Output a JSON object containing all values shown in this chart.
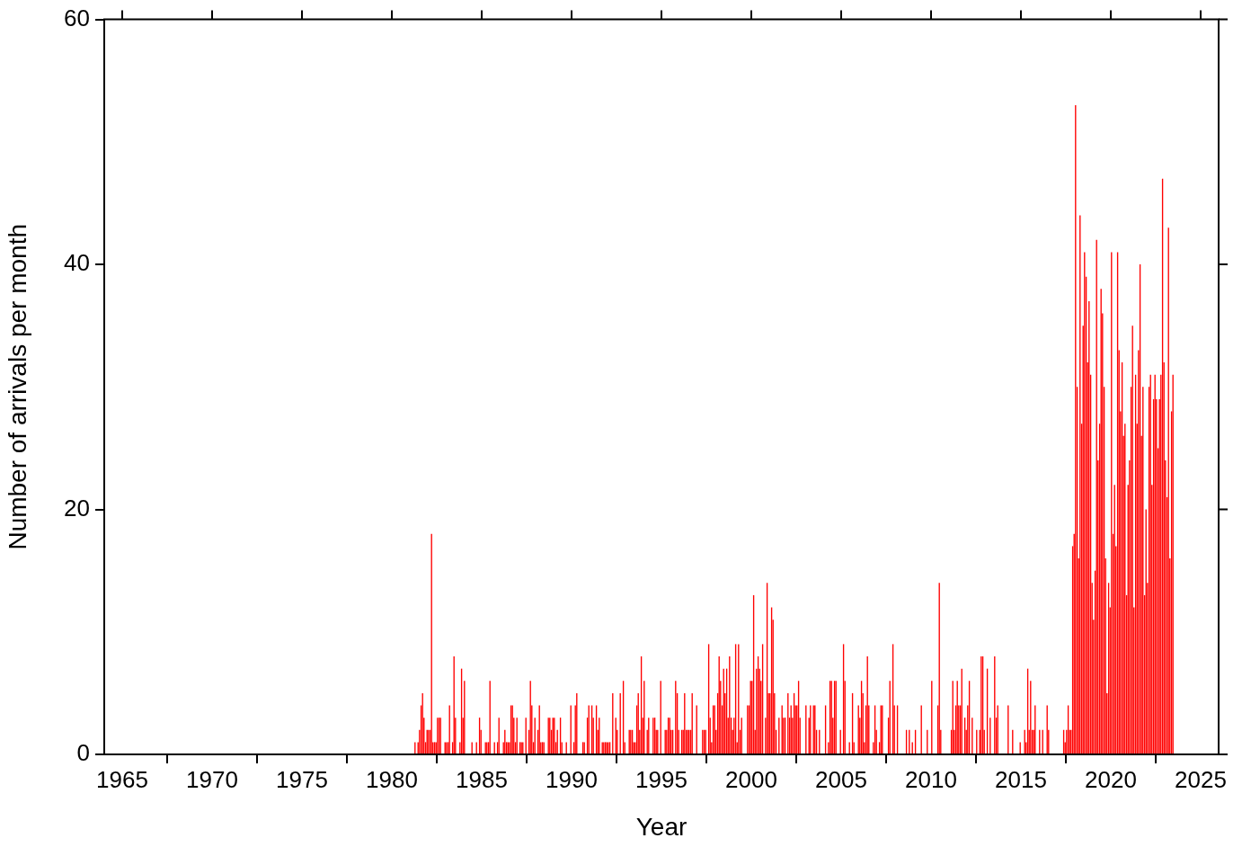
{
  "chart_data": {
    "type": "bar",
    "xlabel": "Year",
    "ylabel": "Number of arrivals per month",
    "color": "#ff0000",
    "xlim": [
      1964,
      2026
    ],
    "xticks": [
      1965,
      1970,
      1975,
      1980,
      1985,
      1990,
      1995,
      2000,
      2005,
      2010,
      2015,
      2020,
      2025
    ],
    "ylim": [
      0,
      60
    ],
    "yticks": [
      0,
      20,
      40,
      60
    ],
    "x": [
      1981.04,
      1981.13,
      1981.21,
      1981.29,
      1981.38,
      1981.46,
      1981.54,
      1981.63,
      1981.71,
      1981.79,
      1981.88,
      1981.96,
      1982.04,
      1982.13,
      1982.21,
      1982.29,
      1982.38,
      1982.46,
      1982.54,
      1982.63,
      1982.71,
      1982.79,
      1982.88,
      1982.96,
      1983.04,
      1983.13,
      1983.21,
      1983.29,
      1983.38,
      1983.46,
      1983.54,
      1983.63,
      1983.71,
      1983.79,
      1983.88,
      1983.96,
      1984.04,
      1984.13,
      1984.21,
      1984.29,
      1984.38,
      1984.46,
      1984.54,
      1984.63,
      1984.71,
      1984.79,
      1984.88,
      1984.96,
      1985.04,
      1985.13,
      1985.21,
      1985.29,
      1985.38,
      1985.46,
      1985.54,
      1985.63,
      1985.71,
      1985.79,
      1985.88,
      1985.96,
      1986.04,
      1986.13,
      1986.21,
      1986.29,
      1986.38,
      1986.46,
      1986.54,
      1986.63,
      1986.71,
      1986.79,
      1986.88,
      1986.96,
      1987.04,
      1987.13,
      1987.21,
      1987.29,
      1987.38,
      1987.46,
      1987.54,
      1987.63,
      1987.71,
      1987.79,
      1987.88,
      1987.96,
      1988.04,
      1988.13,
      1988.21,
      1988.29,
      1988.38,
      1988.46,
      1988.54,
      1988.63,
      1988.71,
      1988.79,
      1988.88,
      1988.96,
      1989.04,
      1989.13,
      1989.21,
      1989.29,
      1989.38,
      1989.46,
      1989.54,
      1989.63,
      1989.71,
      1989.79,
      1989.88,
      1989.96,
      1990.04,
      1990.13,
      1990.21,
      1990.29,
      1990.38,
      1990.46,
      1990.54,
      1990.63,
      1990.71,
      1990.79,
      1990.88,
      1990.96,
      1991.04,
      1991.13,
      1991.21,
      1991.29,
      1991.38,
      1991.46,
      1991.54,
      1991.63,
      1991.71,
      1991.79,
      1991.88,
      1991.96,
      1992.04,
      1992.13,
      1992.21,
      1992.29,
      1992.38,
      1992.46,
      1992.54,
      1992.63,
      1992.71,
      1992.79,
      1992.88,
      1992.96,
      1993.04,
      1993.13,
      1993.21,
      1993.29,
      1993.38,
      1993.46,
      1993.54,
      1993.63,
      1993.71,
      1993.79,
      1993.88,
      1993.96,
      1994.04,
      1994.13,
      1994.21,
      1994.29,
      1994.38,
      1994.46,
      1994.54,
      1994.63,
      1994.71,
      1994.79,
      1994.88,
      1994.96,
      1995.04,
      1995.13,
      1995.21,
      1995.29,
      1995.38,
      1995.46,
      1995.54,
      1995.63,
      1995.71,
      1995.79,
      1995.88,
      1995.96,
      1996.04,
      1996.13,
      1996.21,
      1996.29,
      1996.38,
      1996.46,
      1996.54,
      1996.63,
      1996.71,
      1996.79,
      1996.88,
      1996.96,
      1997.04,
      1997.13,
      1997.21,
      1997.29,
      1997.38,
      1997.46,
      1997.54,
      1997.63,
      1997.71,
      1997.79,
      1997.88,
      1997.96,
      1998.04,
      1998.13,
      1998.21,
      1998.29,
      1998.38,
      1998.46,
      1998.54,
      1998.63,
      1998.71,
      1998.79,
      1998.88,
      1998.96,
      1999.04,
      1999.13,
      1999.21,
      1999.29,
      1999.38,
      1999.46,
      1999.54,
      1999.63,
      1999.71,
      1999.79,
      1999.88,
      1999.96,
      2000.04,
      2000.13,
      2000.21,
      2000.29,
      2000.38,
      2000.46,
      2000.54,
      2000.63,
      2000.71,
      2000.79,
      2000.88,
      2000.96,
      2001.04,
      2001.13,
      2001.21,
      2001.29,
      2001.38,
      2001.46,
      2001.54,
      2001.63,
      2001.71,
      2001.79,
      2001.88,
      2001.96,
      2002.04,
      2002.13,
      2002.21,
      2002.29,
      2002.38,
      2002.46,
      2002.54,
      2002.63,
      2002.71,
      2002.79,
      2002.88,
      2002.96,
      2003.04,
      2003.13,
      2003.21,
      2003.29,
      2003.38,
      2003.46,
      2003.54,
      2003.63,
      2003.71,
      2003.79,
      2003.88,
      2003.96,
      2004.04,
      2004.13,
      2004.21,
      2004.29,
      2004.38,
      2004.46,
      2004.54,
      2004.63,
      2004.71,
      2004.79,
      2004.88,
      2004.96,
      2005.04,
      2005.13,
      2005.21,
      2005.29,
      2005.38,
      2005.46,
      2005.54,
      2005.63,
      2005.71,
      2005.79,
      2005.88,
      2005.96,
      2006.04,
      2006.13,
      2006.21,
      2006.29,
      2006.38,
      2006.46,
      2006.54,
      2006.63,
      2006.71,
      2006.79,
      2006.88,
      2006.96,
      2007.04,
      2007.13,
      2007.21,
      2007.29,
      2007.38,
      2007.46,
      2007.54,
      2007.63,
      2007.71,
      2007.79,
      2007.88,
      2007.96,
      2008.04,
      2008.13,
      2008.21,
      2008.29,
      2008.38,
      2008.46,
      2008.54,
      2008.63,
      2008.71,
      2008.79,
      2008.88,
      2008.96,
      2009.04,
      2009.13,
      2009.21,
      2009.29,
      2009.38,
      2009.46,
      2009.54,
      2009.63,
      2009.71,
      2009.79,
      2009.88,
      2009.96,
      2010.04,
      2010.13,
      2010.21,
      2010.29,
      2010.38,
      2010.46,
      2010.54,
      2010.63,
      2010.71,
      2010.79,
      2010.88,
      2010.96,
      2011.04,
      2011.13,
      2011.21,
      2011.29,
      2011.38,
      2011.46,
      2011.54,
      2011.63,
      2011.71,
      2011.79,
      2011.88,
      2011.96,
      2012.04,
      2012.13,
      2012.21,
      2012.29,
      2012.38,
      2012.46,
      2012.54,
      2012.63,
      2012.71,
      2012.79,
      2012.88,
      2012.96,
      2013.04,
      2013.13,
      2013.21,
      2013.29,
      2013.38,
      2013.46,
      2013.54,
      2013.63,
      2013.71,
      2013.79,
      2013.88,
      2013.96,
      2014.04,
      2014.13,
      2014.21,
      2014.29,
      2014.38,
      2014.46,
      2014.54,
      2014.63,
      2014.71,
      2014.79,
      2014.88,
      2014.96,
      2015.04,
      2015.13,
      2015.21,
      2015.29,
      2015.38,
      2015.46,
      2015.54,
      2015.63,
      2015.71,
      2015.79,
      2015.88,
      2015.96,
      2016.04,
      2016.13,
      2016.21,
      2016.29,
      2016.38,
      2016.46,
      2016.54,
      2016.63,
      2016.71,
      2016.79,
      2016.88,
      2016.96,
      2017.04,
      2017.13,
      2017.21,
      2017.29,
      2017.38,
      2017.46,
      2017.54,
      2017.63,
      2017.71,
      2017.79,
      2017.88,
      2017.96,
      2018.04,
      2018.13,
      2018.21,
      2018.29,
      2018.38,
      2018.46,
      2018.54,
      2018.63,
      2018.71,
      2018.79,
      2018.88,
      2018.96,
      2019.04,
      2019.13,
      2019.21,
      2019.29,
      2019.38,
      2019.46,
      2019.54,
      2019.63,
      2019.71,
      2019.79,
      2019.88,
      2019.96,
      2020.04,
      2020.13,
      2020.21,
      2020.29,
      2020.38,
      2020.46,
      2020.54,
      2020.63,
      2020.71,
      2020.79,
      2020.88,
      2020.96,
      2021.04,
      2021.13,
      2021.21,
      2021.29,
      2021.38,
      2021.46,
      2021.54,
      2021.63,
      2021.71,
      2021.79,
      2021.88,
      2021.96,
      2022.04,
      2022.13,
      2022.21,
      2022.29,
      2022.38,
      2022.46,
      2022.54,
      2022.63,
      2022.71,
      2022.79,
      2022.88,
      2022.96,
      2023.04,
      2023.13,
      2023.21,
      2023.29,
      2023.38,
      2023.46
    ],
    "values": [
      0,
      0,
      0,
      1,
      0,
      1,
      2,
      4,
      5,
      3,
      1,
      2,
      2,
      2,
      18,
      1,
      1,
      1,
      3,
      3,
      3,
      0,
      0,
      1,
      1,
      1,
      4,
      0,
      1,
      8,
      3,
      0,
      0,
      1,
      7,
      3,
      6,
      0,
      0,
      0,
      0,
      1,
      0,
      0,
      1,
      0,
      3,
      2,
      0,
      0,
      1,
      1,
      1,
      6,
      0,
      0,
      1,
      0,
      1,
      3,
      0,
      0,
      1,
      2,
      1,
      1,
      1,
      4,
      4,
      3,
      1,
      3,
      0,
      1,
      1,
      1,
      0,
      3,
      0,
      2,
      6,
      4,
      1,
      3,
      0,
      2,
      4,
      1,
      1,
      1,
      0,
      0,
      3,
      3,
      2,
      3,
      3,
      1,
      2,
      0,
      3,
      1,
      0,
      0,
      1,
      0,
      0,
      4,
      0,
      1,
      4,
      5,
      0,
      0,
      0,
      1,
      1,
      0,
      3,
      4,
      0,
      4,
      3,
      0,
      4,
      2,
      3,
      0,
      1,
      1,
      1,
      1,
      1,
      1,
      0,
      5,
      0,
      3,
      2,
      0,
      5,
      0,
      6,
      1,
      0,
      0,
      2,
      2,
      2,
      1,
      1,
      4,
      5,
      2,
      8,
      3,
      6,
      0,
      2,
      3,
      0,
      0,
      3,
      3,
      2,
      2,
      0,
      6,
      0,
      0,
      2,
      2,
      3,
      3,
      2,
      2,
      0,
      6,
      5,
      2,
      0,
      2,
      2,
      5,
      2,
      2,
      2,
      2,
      5,
      0,
      0,
      4,
      0,
      0,
      0,
      2,
      2,
      2,
      0,
      9,
      3,
      1,
      4,
      4,
      2,
      5,
      8,
      6,
      4,
      7,
      5,
      7,
      3,
      8,
      3,
      2,
      3,
      9,
      1,
      9,
      2,
      3,
      0,
      0,
      0,
      4,
      4,
      6,
      6,
      13,
      2,
      7,
      8,
      7,
      6,
      9,
      0,
      3,
      14,
      5,
      5,
      12,
      11,
      5,
      2,
      0,
      3,
      0,
      4,
      3,
      3,
      0,
      5,
      3,
      4,
      3,
      5,
      4,
      4,
      6,
      3,
      0,
      0,
      0,
      4,
      0,
      3,
      4,
      0,
      4,
      4,
      2,
      0,
      2,
      0,
      0,
      0,
      4,
      0,
      1,
      6,
      6,
      3,
      6,
      6,
      0,
      0,
      2,
      0,
      9,
      6,
      0,
      0,
      1,
      0,
      5,
      1,
      0,
      0,
      4,
      3,
      6,
      5,
      1,
      4,
      8,
      4,
      0,
      0,
      1,
      4,
      2,
      0,
      1,
      4,
      4,
      0,
      0,
      0,
      3,
      6,
      0,
      9,
      4,
      0,
      4,
      0,
      0,
      0,
      0,
      0,
      2,
      0,
      2,
      0,
      1,
      0,
      2,
      0,
      0,
      0,
      4,
      0,
      0,
      0,
      2,
      0,
      0,
      6,
      0,
      0,
      0,
      4,
      14,
      2,
      0,
      0,
      0,
      0,
      0,
      0,
      2,
      6,
      2,
      4,
      6,
      4,
      4,
      7,
      0,
      3,
      2,
      4,
      6,
      0,
      3,
      0,
      0,
      2,
      0,
      2,
      8,
      8,
      2,
      0,
      7,
      0,
      3,
      0,
      0,
      8,
      3,
      4,
      0,
      0,
      0,
      0,
      0,
      0,
      4,
      0,
      0,
      2,
      0,
      0,
      0,
      0,
      1,
      0,
      0,
      2,
      1,
      7,
      2,
      6,
      2,
      2,
      4,
      0,
      0,
      2,
      0,
      2,
      0,
      0,
      4,
      2,
      0,
      0,
      0,
      0,
      0,
      0,
      0,
      0,
      0,
      2,
      1,
      2,
      4,
      2,
      2,
      17,
      18,
      53,
      30,
      16,
      44,
      27,
      35,
      41,
      39,
      32,
      37,
      31,
      14,
      11,
      15,
      42,
      24,
      27,
      38,
      36,
      30,
      16,
      5,
      14,
      12,
      41,
      18,
      22,
      17,
      41,
      33,
      28,
      32,
      26,
      27,
      13,
      22,
      24,
      30,
      35,
      12,
      31,
      27,
      33,
      40,
      26,
      30,
      13,
      20,
      14,
      30,
      31,
      22,
      29,
      31,
      29,
      25,
      29,
      31,
      47,
      32,
      24,
      21,
      43,
      16,
      28,
      31
    ]
  }
}
